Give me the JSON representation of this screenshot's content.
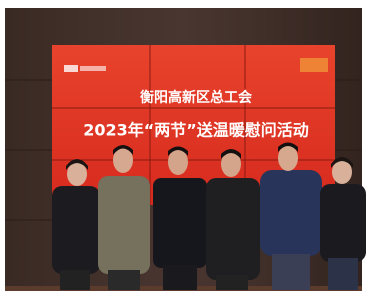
{
  "screen": {
    "title": "衡阳高新区总工会",
    "subtitle": "2023年“两节”送温暖慰问活动"
  }
}
